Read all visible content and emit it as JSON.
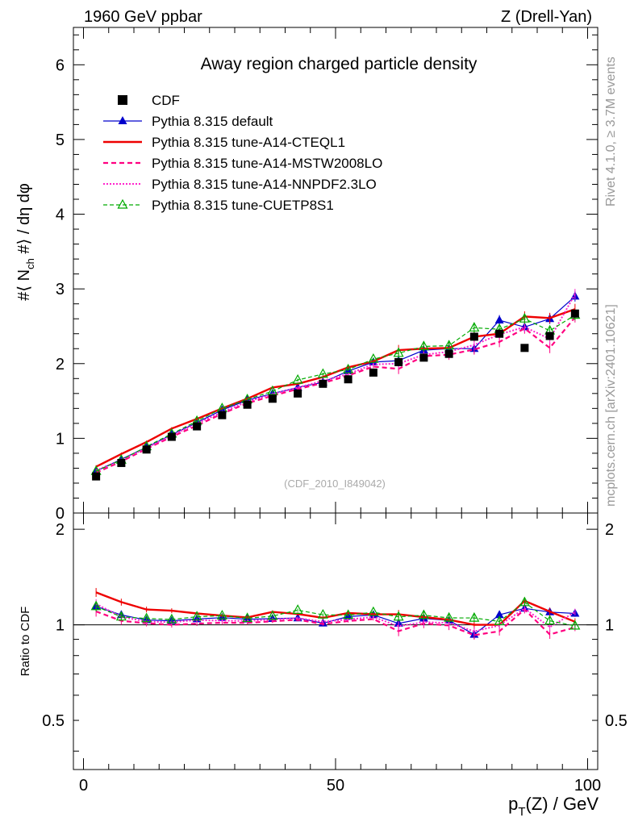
{
  "header": {
    "left": "1960 GeV ppbar",
    "right": "Z (Drell-Yan)"
  },
  "side": {
    "rivet": "Rivet 4.1.0, ≥ 3.7M events",
    "mcplots": "mcplots.cern.ch [arXiv:2401.10621]"
  },
  "chart_data": {
    "type": "line",
    "title": "Away region charged particle density",
    "watermark": "(CDF_2010_I849042)",
    "xlabel": "p_T(Z) / GeV",
    "ylabel": "#⟨ N_ch #⟩ / dη dφ",
    "ratio_ylabel": "Ratio to CDF",
    "xlim": [
      -2,
      102
    ],
    "ylim": [
      0,
      6.5
    ],
    "ratio_ylim": [
      0.35,
      2.25
    ],
    "x_ticks": [
      "0",
      "50",
      "100"
    ],
    "y_ticks": [
      "0",
      "1",
      "2",
      "3",
      "4",
      "5",
      "6"
    ],
    "ratio_ticks": [
      "0.5",
      "1",
      "2"
    ],
    "x": [
      2.5,
      7.5,
      12.5,
      17.5,
      22.5,
      27.5,
      32.5,
      37.5,
      42.5,
      47.5,
      52.5,
      57.5,
      62.5,
      67.5,
      72.5,
      77.5,
      82.5,
      87.5,
      92.5,
      97.5
    ],
    "data": {
      "name": "CDF",
      "values": [
        0.49,
        0.67,
        0.85,
        1.02,
        1.16,
        1.31,
        1.45,
        1.53,
        1.6,
        1.73,
        1.79,
        1.88,
        2.02,
        2.08,
        2.13,
        2.36,
        2.4,
        2.21,
        2.37,
        2.67
      ]
    },
    "series": [
      {
        "name": "Pythia 8.315 default",
        "color": "#0000cc",
        "values": [
          0.56,
          0.72,
          0.88,
          1.05,
          1.21,
          1.38,
          1.51,
          1.6,
          1.68,
          1.75,
          1.9,
          2.02,
          2.04,
          2.18,
          2.2,
          2.2,
          2.58,
          2.49,
          2.6,
          2.9
        ]
      },
      {
        "name": "Pythia 8.315 tune-A14-CTEQL1",
        "color": "#ee0000",
        "values": [
          0.62,
          0.79,
          0.95,
          1.13,
          1.26,
          1.4,
          1.53,
          1.68,
          1.73,
          1.82,
          1.95,
          2.03,
          2.18,
          2.2,
          2.21,
          2.36,
          2.4,
          2.63,
          2.61,
          2.73
        ]
      },
      {
        "name": "Pythia 8.315 tune-A14-MSTW2008LO",
        "color": "#ff0080",
        "values": [
          0.54,
          0.69,
          0.86,
          1.02,
          1.17,
          1.33,
          1.47,
          1.57,
          1.66,
          1.74,
          1.84,
          1.96,
          1.93,
          2.1,
          2.12,
          2.19,
          2.29,
          2.47,
          2.21,
          2.62
        ]
      },
      {
        "name": "Pythia 8.315 tune-A14-NNPDF2.3LO",
        "color": "#ff22cc",
        "values": [
          0.57,
          0.71,
          0.87,
          1.04,
          1.2,
          1.35,
          1.49,
          1.59,
          1.68,
          1.77,
          1.86,
          1.99,
          2.0,
          2.12,
          2.16,
          2.25,
          2.39,
          2.49,
          2.33,
          2.93
        ]
      },
      {
        "name": "Pythia 8.315 tune-CUETP8S1",
        "color": "#00aa00",
        "values": [
          0.56,
          0.71,
          0.89,
          1.06,
          1.23,
          1.4,
          1.52,
          1.63,
          1.78,
          1.86,
          1.92,
          2.06,
          2.14,
          2.23,
          2.24,
          2.48,
          2.46,
          2.6,
          2.44,
          2.65
        ]
      }
    ],
    "legend": [
      "CDF",
      "Pythia 8.315 default",
      "Pythia 8.315 tune-A14-CTEQL1",
      "Pythia 8.315 tune-A14-MSTW2008LO",
      "Pythia 8.315 tune-A14-NNPDF2.3LO",
      "Pythia 8.315 tune-CUETP8S1"
    ]
  }
}
